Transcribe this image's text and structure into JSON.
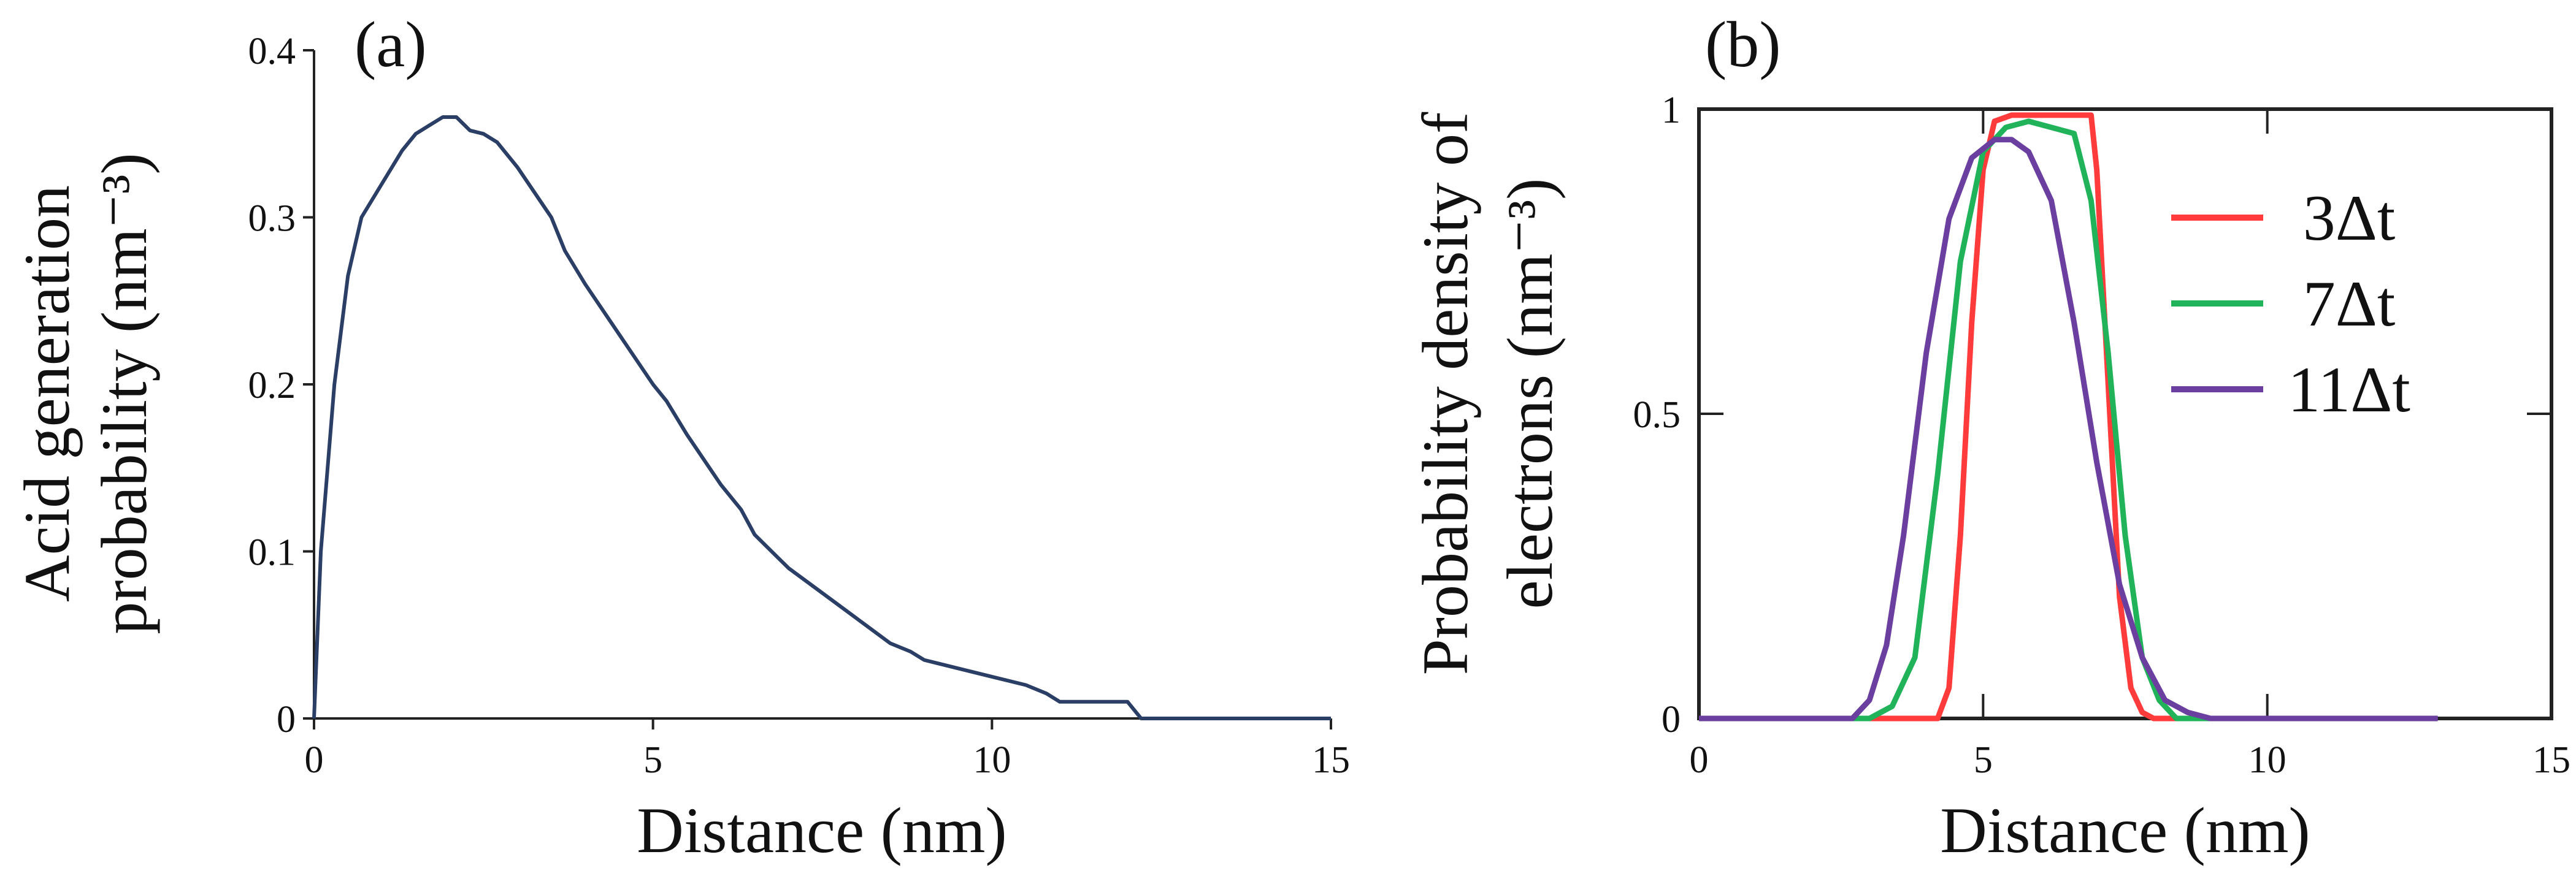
{
  "chart_data": [
    {
      "panel_label": "(a)",
      "type": "line",
      "xlabel": "Distance (nm)",
      "ylabel": "Acid generation probability (nm⁻³)",
      "ylabel_lines": [
        "Acid generation",
        "probability (nm⁻³)"
      ],
      "xlim": [
        0,
        15
      ],
      "ylim": [
        0,
        0.4
      ],
      "x_ticks": [
        0,
        5,
        10,
        15
      ],
      "x_tick_labels": [
        "0",
        "5",
        "10",
        "15"
      ],
      "y_ticks": [
        0,
        0.1,
        0.2,
        0.3,
        0.4
      ],
      "y_tick_labels": [
        "0",
        "0.1",
        "0.2",
        "0.3",
        "0.4"
      ],
      "grid": false,
      "series": [
        {
          "color": "#2b3f66",
          "x": [
            0,
            0.1,
            0.3,
            0.5,
            0.7,
            1.0,
            1.3,
            1.5,
            1.7,
            1.9,
            2.1,
            2.3,
            2.5,
            2.7,
            3.0,
            3.5,
            3.7,
            4.0,
            4.5,
            5.0,
            5.2,
            5.5,
            6.0,
            6.3,
            6.5,
            7.0,
            7.5,
            8.0,
            8.5,
            8.8,
            9.0,
            9.5,
            10.0,
            10.5,
            10.8,
            11.0,
            11.5,
            12.0,
            12.2,
            13.0,
            14.0,
            15.0
          ],
          "y": [
            0,
            0.1,
            0.2,
            0.265,
            0.3,
            0.32,
            0.34,
            0.35,
            0.355,
            0.36,
            0.36,
            0.352,
            0.35,
            0.345,
            0.33,
            0.3,
            0.28,
            0.26,
            0.23,
            0.2,
            0.19,
            0.17,
            0.14,
            0.125,
            0.11,
            0.09,
            0.075,
            0.06,
            0.045,
            0.04,
            0.035,
            0.03,
            0.025,
            0.02,
            0.015,
            0.01,
            0.01,
            0.01,
            0,
            0,
            0,
            0
          ]
        }
      ]
    },
    {
      "panel_label": "(b)",
      "type": "line",
      "xlabel": "Distance (nm)",
      "ylabel": "Probability density of electrons (nm⁻³)",
      "ylabel_lines": [
        "Probability density of",
        "electrons (nm⁻³)"
      ],
      "xlim": [
        0,
        15
      ],
      "ylim": [
        0,
        1
      ],
      "x_ticks": [
        0,
        5,
        10,
        15
      ],
      "x_tick_labels": [
        "0",
        "5",
        "10",
        "15"
      ],
      "y_ticks": [
        0,
        0.5,
        1
      ],
      "y_tick_labels": [
        "0",
        "0.5",
        "1"
      ],
      "grid": false,
      "legend_position": "right",
      "series": [
        {
          "name": "3Δt",
          "color": "#ff3b3b",
          "x": [
            0,
            4.2,
            4.4,
            4.6,
            4.8,
            5.0,
            5.2,
            5.5,
            6.0,
            6.5,
            6.9,
            7.0,
            7.2,
            7.4,
            7.6,
            7.8,
            8.0,
            9.0,
            12.0
          ],
          "y": [
            0,
            0,
            0.05,
            0.3,
            0.65,
            0.9,
            0.98,
            0.99,
            0.99,
            0.99,
            0.99,
            0.9,
            0.55,
            0.2,
            0.05,
            0.01,
            0,
            0,
            0
          ]
        },
        {
          "name": "7Δt",
          "color": "#20b35a",
          "x": [
            0,
            3.0,
            3.4,
            3.8,
            4.2,
            4.6,
            5.0,
            5.4,
            5.8,
            6.2,
            6.6,
            6.9,
            7.2,
            7.5,
            7.8,
            8.1,
            8.4,
            9.0,
            12.0
          ],
          "y": [
            0,
            0,
            0.02,
            0.1,
            0.4,
            0.75,
            0.93,
            0.97,
            0.98,
            0.97,
            0.96,
            0.85,
            0.6,
            0.3,
            0.1,
            0.03,
            0,
            0,
            0
          ]
        },
        {
          "name": "11Δt",
          "color": "#6b3fa0",
          "x": [
            0,
            2.7,
            3.0,
            3.3,
            3.6,
            4.0,
            4.4,
            4.8,
            5.2,
            5.5,
            5.8,
            6.2,
            6.6,
            7.0,
            7.4,
            7.8,
            8.2,
            8.6,
            9.0,
            13.0
          ],
          "y": [
            0,
            0,
            0.03,
            0.12,
            0.3,
            0.6,
            0.82,
            0.92,
            0.95,
            0.95,
            0.93,
            0.85,
            0.65,
            0.42,
            0.22,
            0.1,
            0.03,
            0.01,
            0,
            0
          ]
        }
      ]
    }
  ]
}
